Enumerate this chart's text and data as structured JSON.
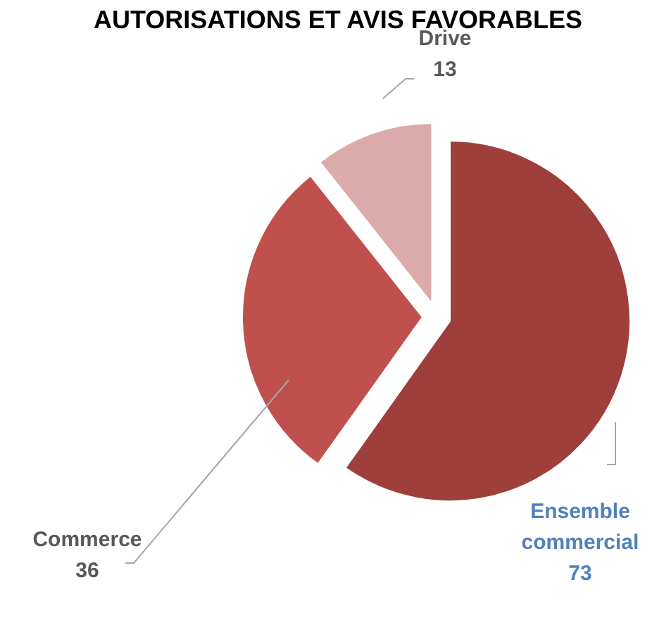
{
  "chart_data": {
    "type": "pie",
    "title": "AUTORISATIONS ET AVIS FAVORABLES",
    "categories": [
      "Ensemble commercial",
      "Commerce",
      "Drive"
    ],
    "values": [
      73,
      36,
      13
    ],
    "colors": [
      "#9e3f3c",
      "#c0504d",
      "#dcaaa9"
    ],
    "data_labels": true
  }
}
